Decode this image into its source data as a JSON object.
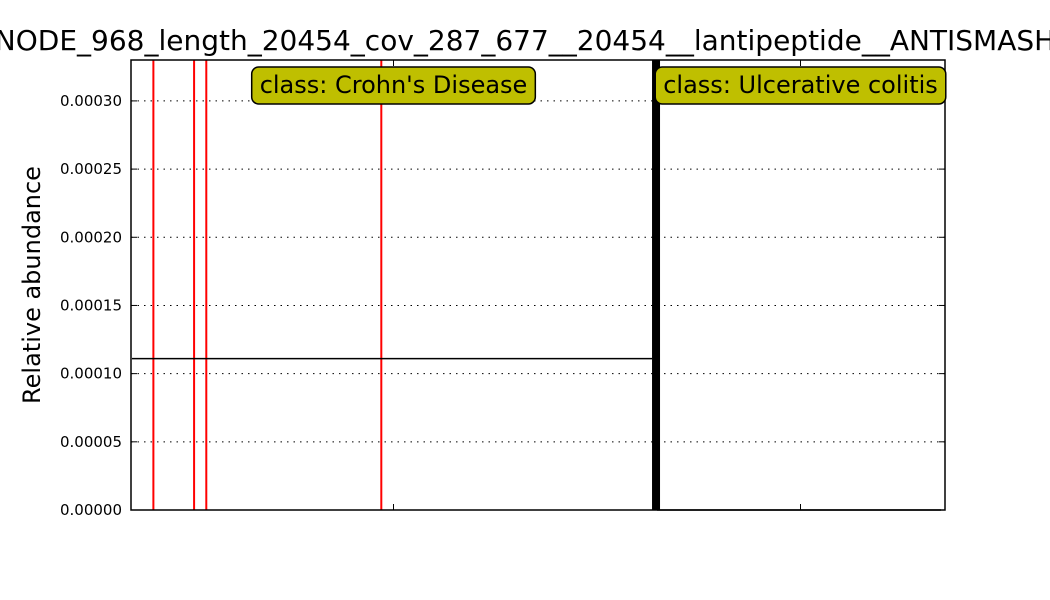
{
  "chart_data": {
    "type": "bar",
    "title": "NODE_968_length_20454_cov_287_677__20454__lantipeptide__ANTISMASH",
    "xlabel": "",
    "ylabel": "Relative abundance",
    "ylim": [
      0,
      0.00033
    ],
    "y_ticks": [
      "0.00000",
      "0.00005",
      "0.00010",
      "0.00015",
      "0.00020",
      "0.00025",
      "0.00030"
    ],
    "y_tick_values": [
      0,
      5e-05,
      0.0001,
      0.00015,
      0.0002,
      0.00025,
      0.0003
    ],
    "grid": "horizontal dotted",
    "n_samples": 200,
    "classes": [
      {
        "label": "class: Crohn's Disease",
        "range": [
          0,
          129
        ],
        "mean": 0.000111,
        "bar_color": "#ff0000",
        "nonzero": [
          {
            "index": 5,
            "value": 0.00033
          },
          {
            "index": 15,
            "value": 0.00033
          },
          {
            "index": 18,
            "value": 0.00033
          },
          {
            "index": 61,
            "value": 0.00033
          }
        ]
      },
      {
        "label": "class: Ulcerative colitis",
        "range": [
          129,
          200
        ],
        "mean": 0.0,
        "bar_color": "#000000",
        "nonzero": []
      }
    ],
    "divider_at": 129,
    "label_box_color": "#bfbf00"
  }
}
